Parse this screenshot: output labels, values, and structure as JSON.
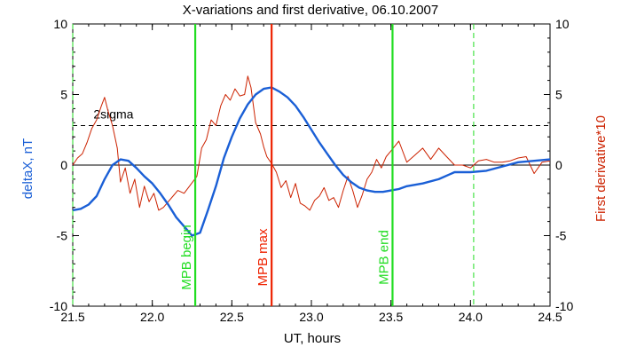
{
  "chart_data": {
    "type": "line",
    "title": "X-variations and first derivative, 06.10.2007",
    "xlabel": "UT, hours",
    "ylabel_left": "deltaX, nT",
    "ylabel_right": "First derivative*10",
    "xlim": [
      21.5,
      24.5
    ],
    "ylim": [
      -10,
      10
    ],
    "x_ticks": [
      "21.5",
      "22.0",
      "22.5",
      "23.0",
      "23.5",
      "24.0",
      "24.5"
    ],
    "x_tick_values": [
      21.5,
      22.0,
      22.5,
      23.0,
      23.5,
      24.0,
      24.5
    ],
    "y_ticks": [
      "10",
      "5",
      "0",
      "-5",
      "-10"
    ],
    "y_tick_values": [
      10,
      5,
      0,
      -5,
      -10
    ],
    "threshold": {
      "label": "2sigma",
      "value": 2.8
    },
    "series": [
      {
        "name": "deltaX, nT",
        "color": "#1a5fd6",
        "x": [
          21.5,
          21.55,
          21.6,
          21.65,
          21.7,
          21.75,
          21.8,
          21.85,
          21.9,
          21.95,
          22.0,
          22.05,
          22.1,
          22.15,
          22.25,
          22.3,
          22.35,
          22.4,
          22.45,
          22.5,
          22.55,
          22.6,
          22.65,
          22.7,
          22.75,
          22.8,
          22.85,
          22.9,
          22.95,
          23.0,
          23.05,
          23.1,
          23.15,
          23.2,
          23.25,
          23.3,
          23.35,
          23.4,
          23.45,
          23.5,
          23.55,
          23.6,
          23.7,
          23.8,
          23.9,
          24.0,
          24.1,
          24.2,
          24.3,
          24.4,
          24.5
        ],
        "y": [
          -3.2,
          -3.1,
          -2.8,
          -2.2,
          -1.0,
          0.0,
          0.4,
          0.3,
          -0.2,
          -0.8,
          -1.3,
          -2.0,
          -2.8,
          -3.7,
          -5.0,
          -4.8,
          -3.2,
          -1.5,
          0.5,
          2.0,
          3.3,
          4.3,
          5.0,
          5.4,
          5.5,
          5.2,
          4.8,
          4.2,
          3.4,
          2.5,
          1.6,
          0.8,
          0.0,
          -0.7,
          -1.2,
          -1.6,
          -1.8,
          -1.9,
          -1.9,
          -1.8,
          -1.7,
          -1.5,
          -1.3,
          -1.0,
          -0.5,
          -0.5,
          -0.4,
          -0.1,
          0.2,
          0.3,
          0.4
        ]
      },
      {
        "name": "First derivative*10",
        "color": "#cc2200",
        "x": [
          21.5,
          21.53,
          21.56,
          21.59,
          21.62,
          21.65,
          21.68,
          21.7,
          21.72,
          21.75,
          21.78,
          21.8,
          21.83,
          21.86,
          21.89,
          21.92,
          21.95,
          21.98,
          22.01,
          22.04,
          22.07,
          22.1,
          22.13,
          22.16,
          22.2,
          22.24,
          22.28,
          22.31,
          22.34,
          22.37,
          22.4,
          22.43,
          22.46,
          22.49,
          22.52,
          22.55,
          22.58,
          22.6,
          22.62,
          22.65,
          22.68,
          22.7,
          22.72,
          22.75,
          22.78,
          22.81,
          22.84,
          22.87,
          22.9,
          22.93,
          22.96,
          22.99,
          23.02,
          23.05,
          23.08,
          23.11,
          23.14,
          23.17,
          23.2,
          23.23,
          23.26,
          23.29,
          23.32,
          23.35,
          23.38,
          23.41,
          23.44,
          23.47,
          23.5,
          23.55,
          23.6,
          23.65,
          23.7,
          23.75,
          23.8,
          23.85,
          23.9,
          23.95,
          24.0,
          24.05,
          24.1,
          24.15,
          24.2,
          24.25,
          24.3,
          24.35,
          24.4,
          24.45,
          24.5
        ],
        "y": [
          0.0,
          0.5,
          0.8,
          1.6,
          2.6,
          3.2,
          4.2,
          4.8,
          3.9,
          2.8,
          1.2,
          -1.2,
          -0.2,
          -2.0,
          -1.0,
          -3.0,
          -1.5,
          -2.6,
          -2.0,
          -3.2,
          -3.0,
          -2.6,
          -2.2,
          -1.8,
          -2.0,
          -1.4,
          -0.8,
          1.2,
          1.8,
          3.2,
          2.8,
          4.2,
          5.0,
          4.6,
          5.4,
          4.9,
          5.0,
          6.3,
          5.5,
          3.0,
          2.2,
          1.3,
          0.6,
          0.1,
          -0.5,
          -1.6,
          -1.1,
          -2.3,
          -1.3,
          -2.7,
          -2.9,
          -3.2,
          -2.5,
          -2.2,
          -1.6,
          -2.5,
          -2.3,
          -3.0,
          -1.8,
          -0.8,
          -1.8,
          -3.0,
          -2.1,
          -1.0,
          -0.5,
          0.4,
          -0.2,
          0.6,
          1.0,
          1.7,
          0.2,
          0.7,
          1.2,
          0.4,
          1.2,
          0.6,
          0.0,
          0.0,
          -0.2,
          0.3,
          0.4,
          0.2,
          0.2,
          0.3,
          0.5,
          0.6,
          -0.6,
          0.2,
          0.3
        ]
      }
    ],
    "vlines": [
      {
        "label": "MPB begin",
        "x": 22.27,
        "color": "#22dd22",
        "style": "solid"
      },
      {
        "label": "MPB max",
        "x": 22.75,
        "color": "#ee2200",
        "style": "solid"
      },
      {
        "label": "MPB end",
        "x": 23.51,
        "color": "#22dd22",
        "style": "solid"
      },
      {
        "label": "",
        "x": 24.02,
        "color": "#22dd22",
        "style": "dashed"
      },
      {
        "label": "",
        "x": 21.5,
        "color": "#22dd22",
        "style": "dashed"
      }
    ],
    "zero_line": 0,
    "colors": {
      "axis": "#000000",
      "left_label": "#1a5fd6",
      "right_label": "#cc2200"
    }
  }
}
